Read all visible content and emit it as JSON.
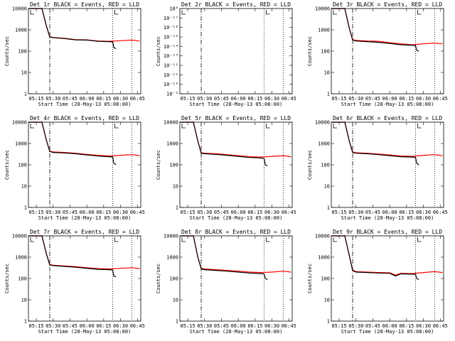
{
  "figure": {
    "colors": {
      "events": "#000000",
      "lld": "#ff0000",
      "axes": "#000000"
    },
    "line_styles": [
      "dot-dash marker at 05:27",
      "dotted marker at 06:23",
      "dotted marker at 06:40"
    ]
  },
  "chart_data": [
    {
      "type": "line",
      "title": "Det 1r BLACK = Events, RED = LLD",
      "xlabel": "Start Time (28-May-13 05:08:00)",
      "ylabel": "Counts/sec",
      "x_ticks": [
        "05:15",
        "05:30",
        "05:45",
        "06:00",
        "06:15",
        "06:30",
        "06:45"
      ],
      "y_ticks": [
        "1",
        "10",
        "100",
        "1000",
        "10000"
      ],
      "yscale": "log",
      "ylim": [
        1,
        10000
      ],
      "markers": [
        "05:27",
        "06:23",
        "06:40"
      ],
      "grid": false,
      "series": [
        {
          "color": "#000000",
          "x": [
            "05:08",
            "05:20",
            "05:24",
            "05:27",
            "05:30",
            "05:40",
            "05:50",
            "06:00",
            "06:10",
            "06:20",
            "06:23",
            "06:24",
            "06:26"
          ],
          "y": [
            10000,
            10000,
            1500,
            460,
            430,
            390,
            340,
            330,
            290,
            280,
            270,
            150,
            130
          ]
        },
        {
          "color": "#ff0000",
          "x": [
            "05:08",
            "05:20",
            "05:24",
            "05:27",
            "05:30",
            "05:40",
            "05:50",
            "06:00",
            "06:10",
            "06:20",
            "06:30",
            "06:40",
            "06:47"
          ],
          "y": [
            10000,
            10000,
            1500,
            480,
            440,
            400,
            350,
            340,
            300,
            290,
            310,
            330,
            300
          ]
        }
      ]
    },
    {
      "type": "line",
      "title": "Det 2r BLACK = Events, RED = LLD",
      "xlabel": "Start Time (28-May-13 05:08:00)",
      "ylabel": "Counts/sec",
      "x_ticks": [
        "05:15",
        "05:30",
        "05:45",
        "06:00",
        "06:15",
        "06:30",
        "06:45"
      ],
      "y_ticks": [
        "10⁻⁹",
        "10⁻¹⁰",
        "10⁻¹¹",
        "10⁻¹²",
        "10⁻¹³",
        "10⁻¹⁴",
        "10⁻¹⁵",
        "10⁻¹⁶",
        "10⁻¹⁷",
        "10⁰"
      ],
      "markers": [
        "05:27",
        "06:23",
        "06:40"
      ],
      "grid": false,
      "series": []
    },
    {
      "type": "line",
      "title": "Det 3r BLACK = Events, RED = LLD",
      "xlabel": "Start Time (28-May-13 05:08:00)",
      "ylabel": "Counts/sec",
      "x_ticks": [
        "05:15",
        "05:30",
        "05:45",
        "06:00",
        "06:15",
        "06:30",
        "06:45"
      ],
      "y_ticks": [
        "1",
        "10",
        "100",
        "1000",
        "10000"
      ],
      "yscale": "log",
      "ylim": [
        1,
        10000
      ],
      "markers": [
        "05:27",
        "06:23",
        "06:40"
      ],
      "grid": false,
      "series": [
        {
          "color": "#000000",
          "x": [
            "05:08",
            "05:20",
            "05:24",
            "05:27",
            "05:30",
            "05:40",
            "05:50",
            "06:00",
            "06:10",
            "06:20",
            "06:23",
            "06:24",
            "06:26"
          ],
          "y": [
            10000,
            10000,
            1200,
            330,
            300,
            280,
            260,
            230,
            200,
            190,
            180,
            110,
            100
          ]
        },
        {
          "color": "#ff0000",
          "x": [
            "05:08",
            "05:20",
            "05:24",
            "05:27",
            "05:30",
            "05:40",
            "05:50",
            "06:00",
            "06:10",
            "06:20",
            "06:30",
            "06:40",
            "06:47"
          ],
          "y": [
            10000,
            10000,
            1200,
            350,
            320,
            300,
            290,
            250,
            220,
            200,
            220,
            240,
            220
          ]
        }
      ]
    },
    {
      "type": "line",
      "title": "Det 4r BLACK = Events, RED = LLD",
      "xlabel": "Start Time (28-May-13 05:08:00)",
      "ylabel": "Counts/sec",
      "x_ticks": [
        "05:15",
        "05:30",
        "05:45",
        "06:00",
        "06:15",
        "06:30",
        "06:45"
      ],
      "y_ticks": [
        "1",
        "10",
        "100",
        "1000",
        "10000"
      ],
      "yscale": "log",
      "ylim": [
        1,
        10000
      ],
      "markers": [
        "05:27",
        "06:23",
        "06:40"
      ],
      "grid": false,
      "series": [
        {
          "color": "#000000",
          "x": [
            "05:08",
            "05:20",
            "05:24",
            "05:27",
            "05:30",
            "05:40",
            "05:50",
            "06:00",
            "06:10",
            "06:20",
            "06:23",
            "06:24",
            "06:26"
          ],
          "y": [
            10000,
            10000,
            1400,
            420,
            380,
            360,
            330,
            290,
            260,
            240,
            230,
            120,
            100
          ]
        },
        {
          "color": "#ff0000",
          "x": [
            "05:08",
            "05:20",
            "05:24",
            "05:27",
            "05:30",
            "05:40",
            "05:50",
            "06:00",
            "06:10",
            "06:20",
            "06:30",
            "06:40",
            "06:47"
          ],
          "y": [
            10000,
            10000,
            1400,
            440,
            400,
            380,
            350,
            310,
            280,
            260,
            280,
            300,
            270
          ]
        }
      ]
    },
    {
      "type": "line",
      "title": "Det 5r BLACK = Events, RED = LLD",
      "xlabel": "Start Time (28-May-13 05:08:00)",
      "ylabel": "Counts/sec",
      "x_ticks": [
        "05:15",
        "05:30",
        "05:45",
        "06:00",
        "06:15",
        "06:30",
        "06:45"
      ],
      "y_ticks": [
        "1",
        "10",
        "100",
        "1000",
        "10000"
      ],
      "yscale": "log",
      "ylim": [
        1,
        10000
      ],
      "markers": [
        "05:27",
        "06:23",
        "06:40"
      ],
      "grid": false,
      "series": [
        {
          "color": "#000000",
          "x": [
            "05:08",
            "05:20",
            "05:24",
            "05:27",
            "05:30",
            "05:40",
            "05:50",
            "06:00",
            "06:10",
            "06:20",
            "06:23",
            "06:24",
            "06:26"
          ],
          "y": [
            10000,
            10000,
            1300,
            350,
            330,
            310,
            280,
            250,
            220,
            210,
            200,
            100,
            90
          ]
        },
        {
          "color": "#ff0000",
          "x": [
            "05:08",
            "05:20",
            "05:24",
            "05:27",
            "05:30",
            "05:40",
            "05:50",
            "06:00",
            "06:10",
            "06:20",
            "06:30",
            "06:40",
            "06:47"
          ],
          "y": [
            10000,
            10000,
            1300,
            370,
            350,
            330,
            300,
            270,
            240,
            230,
            250,
            270,
            240
          ]
        }
      ]
    },
    {
      "type": "line",
      "title": "Det 6r BLACK = Events, RED = LLD",
      "xlabel": "Start Time (28-May-13 05:08:00)",
      "ylabel": "Counts/sec",
      "x_ticks": [
        "05:15",
        "05:30",
        "05:45",
        "06:00",
        "06:15",
        "06:30",
        "06:45"
      ],
      "y_ticks": [
        "1",
        "10",
        "100",
        "1000",
        "10000"
      ],
      "yscale": "log",
      "ylim": [
        1,
        10000
      ],
      "markers": [
        "05:27",
        "06:23",
        "06:40"
      ],
      "grid": false,
      "series": [
        {
          "color": "#000000",
          "x": [
            "05:08",
            "05:20",
            "05:24",
            "05:27",
            "05:30",
            "05:40",
            "05:50",
            "06:00",
            "06:10",
            "06:20",
            "06:23",
            "06:24",
            "06:26"
          ],
          "y": [
            10000,
            10000,
            1300,
            380,
            350,
            330,
            300,
            270,
            240,
            230,
            220,
            120,
            100
          ]
        },
        {
          "color": "#ff0000",
          "x": [
            "05:08",
            "05:20",
            "05:24",
            "05:27",
            "05:30",
            "05:40",
            "05:50",
            "06:00",
            "06:10",
            "06:20",
            "06:30",
            "06:40",
            "06:47"
          ],
          "y": [
            10000,
            10000,
            1300,
            400,
            370,
            350,
            320,
            290,
            260,
            250,
            280,
            300,
            270
          ]
        }
      ]
    },
    {
      "type": "line",
      "title": "Det 7r BLACK = Events, RED = LLD",
      "xlabel": "Start Time (28-May-13 05:08:00)",
      "ylabel": "Counts/sec",
      "x_ticks": [
        "05:15",
        "05:30",
        "05:45",
        "06:00",
        "06:15",
        "06:30",
        "06:45"
      ],
      "y_ticks": [
        "1",
        "10",
        "100",
        "1000",
        "10000"
      ],
      "yscale": "log",
      "ylim": [
        1,
        10000
      ],
      "markers": [
        "05:27",
        "06:23",
        "06:40"
      ],
      "grid": false,
      "series": [
        {
          "color": "#000000",
          "x": [
            "05:08",
            "05:20",
            "05:24",
            "05:27",
            "05:30",
            "05:40",
            "05:50",
            "06:00",
            "06:10",
            "06:20",
            "06:23",
            "06:24",
            "06:26"
          ],
          "y": [
            10000,
            10000,
            1400,
            430,
            400,
            370,
            340,
            300,
            270,
            260,
            250,
            130,
            120
          ]
        },
        {
          "color": "#ff0000",
          "x": [
            "05:08",
            "05:20",
            "05:24",
            "05:27",
            "05:30",
            "05:40",
            "05:50",
            "06:00",
            "06:10",
            "06:20",
            "06:30",
            "06:40",
            "06:47"
          ],
          "y": [
            10000,
            10000,
            1400,
            450,
            420,
            390,
            360,
            320,
            290,
            280,
            300,
            320,
            290
          ]
        }
      ]
    },
    {
      "type": "line",
      "title": "Det 8r BLACK = Events, RED = LLD",
      "xlabel": "Start Time (28-May-13 05:08:00)",
      "ylabel": "Counts/sec",
      "x_ticks": [
        "05:15",
        "05:30",
        "05:45",
        "06:00",
        "06:15",
        "06:30",
        "06:45"
      ],
      "y_ticks": [
        "1",
        "10",
        "100",
        "1000",
        "10000"
      ],
      "yscale": "log",
      "ylim": [
        1,
        10000
      ],
      "markers": [
        "05:27",
        "06:23",
        "06:40"
      ],
      "grid": false,
      "series": [
        {
          "color": "#000000",
          "x": [
            "05:08",
            "05:20",
            "05:24",
            "05:27",
            "05:30",
            "05:40",
            "05:50",
            "06:00",
            "06:10",
            "06:20",
            "06:23",
            "06:24",
            "06:26"
          ],
          "y": [
            10000,
            10000,
            1000,
            280,
            260,
            240,
            220,
            200,
            180,
            170,
            165,
            100,
            90
          ]
        },
        {
          "color": "#ff0000",
          "x": [
            "05:08",
            "05:20",
            "05:24",
            "05:27",
            "05:30",
            "05:40",
            "05:50",
            "06:00",
            "06:10",
            "06:20",
            "06:30",
            "06:40",
            "06:47"
          ],
          "y": [
            10000,
            10000,
            1000,
            300,
            280,
            260,
            240,
            220,
            200,
            190,
            200,
            220,
            200
          ]
        }
      ]
    },
    {
      "type": "line",
      "title": "Det 9r BLACK = Events, RED = LLD",
      "xlabel": "Start Time (28-May-13 05:08:00)",
      "ylabel": "Counts/sec",
      "x_ticks": [
        "05:15",
        "05:30",
        "05:45",
        "06:00",
        "06:15",
        "06:30",
        "06:45"
      ],
      "y_ticks": [
        "1",
        "10",
        "100",
        "1000",
        "10000"
      ],
      "yscale": "log",
      "ylim": [
        1,
        10000
      ],
      "markers": [
        "05:27",
        "06:23",
        "06:40"
      ],
      "grid": false,
      "series": [
        {
          "color": "#000000",
          "x": [
            "05:08",
            "05:20",
            "05:24",
            "05:27",
            "05:30",
            "05:40",
            "05:50",
            "06:00",
            "06:05",
            "06:10",
            "06:20",
            "06:23",
            "06:24",
            "06:26"
          ],
          "y": [
            10000,
            10000,
            1200,
            230,
            200,
            190,
            180,
            175,
            130,
            165,
            160,
            155,
            100,
            90
          ]
        },
        {
          "color": "#ff0000",
          "x": [
            "05:08",
            "05:20",
            "05:24",
            "05:27",
            "05:30",
            "05:40",
            "05:50",
            "06:00",
            "06:05",
            "06:10",
            "06:20",
            "06:30",
            "06:40",
            "06:47"
          ],
          "y": [
            10000,
            10000,
            1200,
            250,
            210,
            200,
            190,
            185,
            145,
            175,
            170,
            190,
            210,
            190
          ]
        }
      ]
    }
  ]
}
